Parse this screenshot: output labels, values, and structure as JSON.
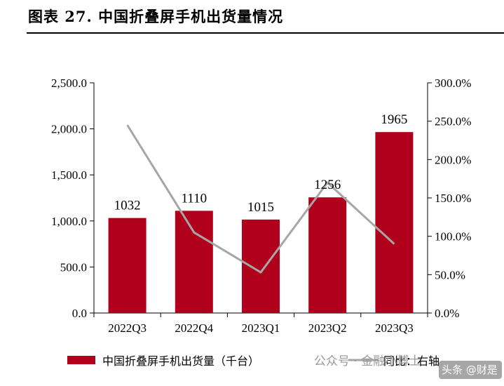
{
  "title": "图表 27. 中国折叠屏手机出货量情况",
  "chart_data": {
    "type": "bar+line",
    "categories": [
      "2022Q3",
      "2022Q4",
      "2023Q1",
      "2023Q2",
      "2023Q3"
    ],
    "series": [
      {
        "name": "中国折叠屏手机出货量（千台）",
        "type": "bar",
        "axis": "left",
        "color": "#b1001c",
        "values": [
          1032,
          1110,
          1015,
          1256,
          1965
        ]
      },
      {
        "name": "同比：右轴",
        "type": "line",
        "axis": "right",
        "color": "#a6a6a6",
        "values": [
          245,
          105,
          53,
          170,
          90
        ]
      }
    ],
    "y_left": {
      "lim": [
        0,
        2500
      ],
      "ticks": [
        0,
        500,
        1000,
        1500,
        2000,
        2500
      ],
      "tick_labels": [
        "0.0",
        "500.0",
        "1,000.0",
        "1,500.0",
        "2,000.0",
        "2,500.0"
      ]
    },
    "y_right": {
      "lim": [
        0,
        300
      ],
      "ticks": [
        0,
        50,
        100,
        150,
        200,
        250,
        300
      ],
      "tick_labels": [
        "0.0%",
        "50.0%",
        "100.0%",
        "150.0%",
        "200.0%",
        "250.0%",
        "300.0%"
      ]
    },
    "data_labels": [
      "1032",
      "1110",
      "1015",
      "1256",
      "1965"
    ],
    "legend": [
      "中国折叠屏手机出货量（千台）",
      "同比：右轴"
    ]
  },
  "watermark": {
    "text1": "公众号 · 金融小博士",
    "text2": "头条 @财是"
  }
}
